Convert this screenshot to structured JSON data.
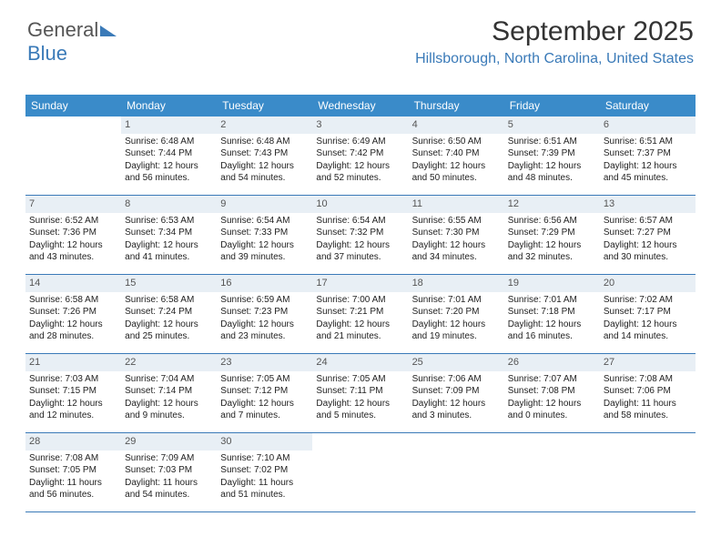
{
  "brand": {
    "part1": "General",
    "part2": "Blue"
  },
  "title": "September 2025",
  "location": "Hillsborough, North Carolina, United States",
  "colors": {
    "header_bg": "#3a8bc9",
    "accent": "#3a7ab8",
    "daynum_bg": "#e8eff5",
    "text": "#222222",
    "title_text": "#333333",
    "page_bg": "#ffffff"
  },
  "dow": [
    "Sunday",
    "Monday",
    "Tuesday",
    "Wednesday",
    "Thursday",
    "Friday",
    "Saturday"
  ],
  "weeks": [
    [
      {
        "num": "",
        "sr": "",
        "ss": "",
        "dl1": "",
        "dl2": ""
      },
      {
        "num": "1",
        "sr": "Sunrise: 6:48 AM",
        "ss": "Sunset: 7:44 PM",
        "dl1": "Daylight: 12 hours",
        "dl2": "and 56 minutes."
      },
      {
        "num": "2",
        "sr": "Sunrise: 6:48 AM",
        "ss": "Sunset: 7:43 PM",
        "dl1": "Daylight: 12 hours",
        "dl2": "and 54 minutes."
      },
      {
        "num": "3",
        "sr": "Sunrise: 6:49 AM",
        "ss": "Sunset: 7:42 PM",
        "dl1": "Daylight: 12 hours",
        "dl2": "and 52 minutes."
      },
      {
        "num": "4",
        "sr": "Sunrise: 6:50 AM",
        "ss": "Sunset: 7:40 PM",
        "dl1": "Daylight: 12 hours",
        "dl2": "and 50 minutes."
      },
      {
        "num": "5",
        "sr": "Sunrise: 6:51 AM",
        "ss": "Sunset: 7:39 PM",
        "dl1": "Daylight: 12 hours",
        "dl2": "and 48 minutes."
      },
      {
        "num": "6",
        "sr": "Sunrise: 6:51 AM",
        "ss": "Sunset: 7:37 PM",
        "dl1": "Daylight: 12 hours",
        "dl2": "and 45 minutes."
      }
    ],
    [
      {
        "num": "7",
        "sr": "Sunrise: 6:52 AM",
        "ss": "Sunset: 7:36 PM",
        "dl1": "Daylight: 12 hours",
        "dl2": "and 43 minutes."
      },
      {
        "num": "8",
        "sr": "Sunrise: 6:53 AM",
        "ss": "Sunset: 7:34 PM",
        "dl1": "Daylight: 12 hours",
        "dl2": "and 41 minutes."
      },
      {
        "num": "9",
        "sr": "Sunrise: 6:54 AM",
        "ss": "Sunset: 7:33 PM",
        "dl1": "Daylight: 12 hours",
        "dl2": "and 39 minutes."
      },
      {
        "num": "10",
        "sr": "Sunrise: 6:54 AM",
        "ss": "Sunset: 7:32 PM",
        "dl1": "Daylight: 12 hours",
        "dl2": "and 37 minutes."
      },
      {
        "num": "11",
        "sr": "Sunrise: 6:55 AM",
        "ss": "Sunset: 7:30 PM",
        "dl1": "Daylight: 12 hours",
        "dl2": "and 34 minutes."
      },
      {
        "num": "12",
        "sr": "Sunrise: 6:56 AM",
        "ss": "Sunset: 7:29 PM",
        "dl1": "Daylight: 12 hours",
        "dl2": "and 32 minutes."
      },
      {
        "num": "13",
        "sr": "Sunrise: 6:57 AM",
        "ss": "Sunset: 7:27 PM",
        "dl1": "Daylight: 12 hours",
        "dl2": "and 30 minutes."
      }
    ],
    [
      {
        "num": "14",
        "sr": "Sunrise: 6:58 AM",
        "ss": "Sunset: 7:26 PM",
        "dl1": "Daylight: 12 hours",
        "dl2": "and 28 minutes."
      },
      {
        "num": "15",
        "sr": "Sunrise: 6:58 AM",
        "ss": "Sunset: 7:24 PM",
        "dl1": "Daylight: 12 hours",
        "dl2": "and 25 minutes."
      },
      {
        "num": "16",
        "sr": "Sunrise: 6:59 AM",
        "ss": "Sunset: 7:23 PM",
        "dl1": "Daylight: 12 hours",
        "dl2": "and 23 minutes."
      },
      {
        "num": "17",
        "sr": "Sunrise: 7:00 AM",
        "ss": "Sunset: 7:21 PM",
        "dl1": "Daylight: 12 hours",
        "dl2": "and 21 minutes."
      },
      {
        "num": "18",
        "sr": "Sunrise: 7:01 AM",
        "ss": "Sunset: 7:20 PM",
        "dl1": "Daylight: 12 hours",
        "dl2": "and 19 minutes."
      },
      {
        "num": "19",
        "sr": "Sunrise: 7:01 AM",
        "ss": "Sunset: 7:18 PM",
        "dl1": "Daylight: 12 hours",
        "dl2": "and 16 minutes."
      },
      {
        "num": "20",
        "sr": "Sunrise: 7:02 AM",
        "ss": "Sunset: 7:17 PM",
        "dl1": "Daylight: 12 hours",
        "dl2": "and 14 minutes."
      }
    ],
    [
      {
        "num": "21",
        "sr": "Sunrise: 7:03 AM",
        "ss": "Sunset: 7:15 PM",
        "dl1": "Daylight: 12 hours",
        "dl2": "and 12 minutes."
      },
      {
        "num": "22",
        "sr": "Sunrise: 7:04 AM",
        "ss": "Sunset: 7:14 PM",
        "dl1": "Daylight: 12 hours",
        "dl2": "and 9 minutes."
      },
      {
        "num": "23",
        "sr": "Sunrise: 7:05 AM",
        "ss": "Sunset: 7:12 PM",
        "dl1": "Daylight: 12 hours",
        "dl2": "and 7 minutes."
      },
      {
        "num": "24",
        "sr": "Sunrise: 7:05 AM",
        "ss": "Sunset: 7:11 PM",
        "dl1": "Daylight: 12 hours",
        "dl2": "and 5 minutes."
      },
      {
        "num": "25",
        "sr": "Sunrise: 7:06 AM",
        "ss": "Sunset: 7:09 PM",
        "dl1": "Daylight: 12 hours",
        "dl2": "and 3 minutes."
      },
      {
        "num": "26",
        "sr": "Sunrise: 7:07 AM",
        "ss": "Sunset: 7:08 PM",
        "dl1": "Daylight: 12 hours",
        "dl2": "and 0 minutes."
      },
      {
        "num": "27",
        "sr": "Sunrise: 7:08 AM",
        "ss": "Sunset: 7:06 PM",
        "dl1": "Daylight: 11 hours",
        "dl2": "and 58 minutes."
      }
    ],
    [
      {
        "num": "28",
        "sr": "Sunrise: 7:08 AM",
        "ss": "Sunset: 7:05 PM",
        "dl1": "Daylight: 11 hours",
        "dl2": "and 56 minutes."
      },
      {
        "num": "29",
        "sr": "Sunrise: 7:09 AM",
        "ss": "Sunset: 7:03 PM",
        "dl1": "Daylight: 11 hours",
        "dl2": "and 54 minutes."
      },
      {
        "num": "30",
        "sr": "Sunrise: 7:10 AM",
        "ss": "Sunset: 7:02 PM",
        "dl1": "Daylight: 11 hours",
        "dl2": "and 51 minutes."
      },
      {
        "num": "",
        "sr": "",
        "ss": "",
        "dl1": "",
        "dl2": ""
      },
      {
        "num": "",
        "sr": "",
        "ss": "",
        "dl1": "",
        "dl2": ""
      },
      {
        "num": "",
        "sr": "",
        "ss": "",
        "dl1": "",
        "dl2": ""
      },
      {
        "num": "",
        "sr": "",
        "ss": "",
        "dl1": "",
        "dl2": ""
      }
    ]
  ]
}
